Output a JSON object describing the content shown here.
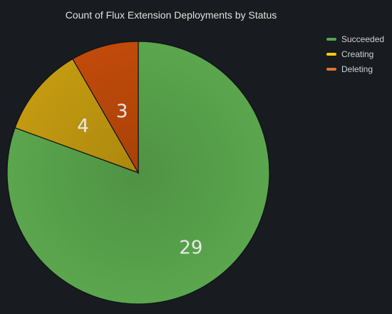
{
  "panel": {
    "title": "Count of Flux Extension Deployments by Status"
  },
  "chart_data": {
    "type": "pie",
    "title": "Count of Flux Extension Deployments by Status",
    "labels": [
      "Succeeded",
      "Creating",
      "Deleting"
    ],
    "values": [
      29,
      4,
      3
    ],
    "colors": [
      "#56a64b",
      "#f2cc0c",
      "#e0752d"
    ],
    "slice_fill_colors": [
      "#5aa64d",
      "#c39a10",
      "#c04a0a"
    ],
    "legend_position": "top-right"
  }
}
